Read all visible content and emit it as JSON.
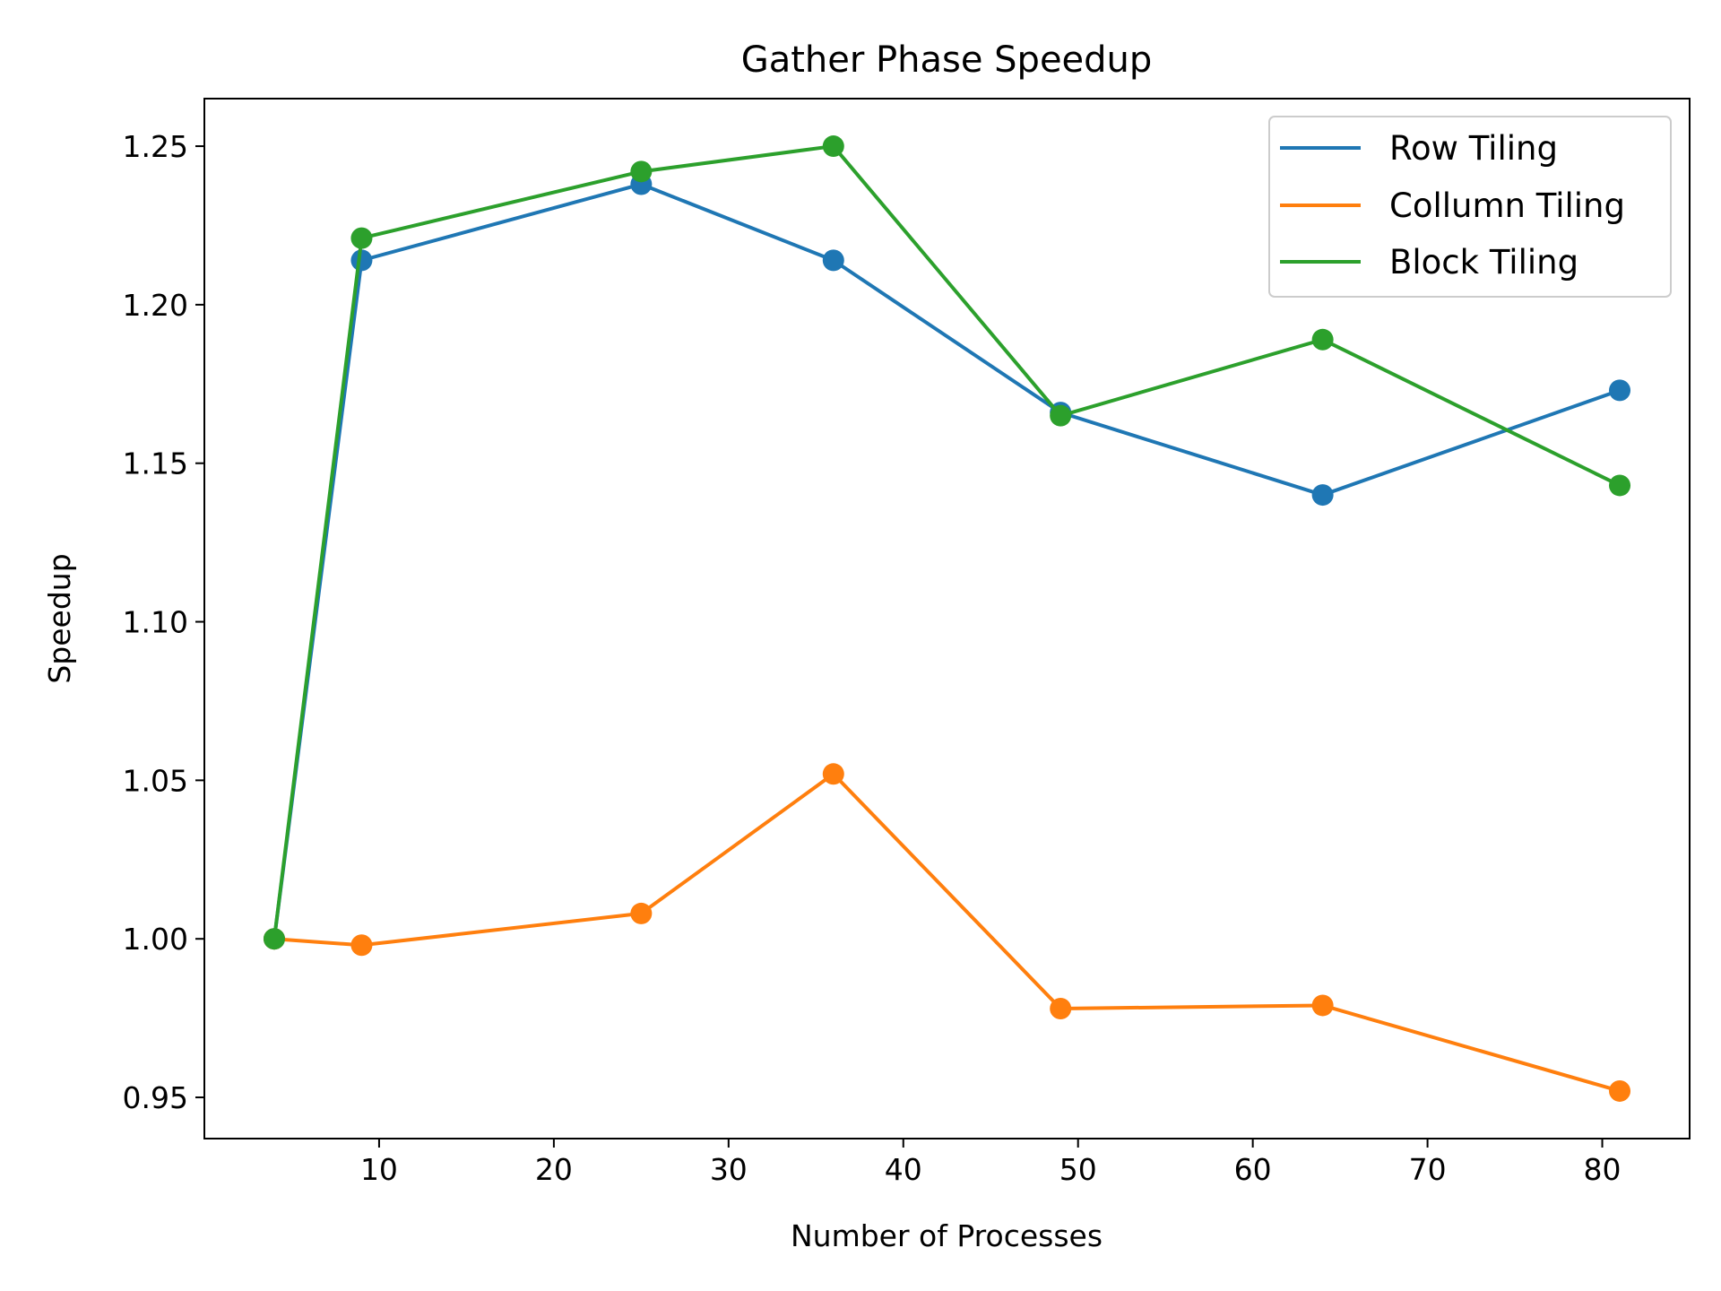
{
  "chart_data": {
    "type": "line",
    "title": "Gather Phase Speedup",
    "xlabel": "Number of Processes",
    "ylabel": "Speedup",
    "xlim": [
      0,
      85
    ],
    "ylim": [
      0.937,
      1.265
    ],
    "xticks": [
      10,
      20,
      30,
      40,
      50,
      60,
      70,
      80
    ],
    "yticks": [
      0.95,
      1.0,
      1.05,
      1.1,
      1.15,
      1.2,
      1.25
    ],
    "ytick_labels": [
      "0.95",
      "1.00",
      "1.05",
      "1.10",
      "1.15",
      "1.20",
      "1.25"
    ],
    "grid": false,
    "legend_position": "top-right",
    "x": [
      4,
      9,
      25,
      36,
      49,
      64,
      81
    ],
    "series": [
      {
        "name": "Row Tiling",
        "color": "#1f77b4",
        "values": [
          1.0,
          1.214,
          1.238,
          1.214,
          1.166,
          1.14,
          1.173
        ]
      },
      {
        "name": "Collumn Tiling",
        "color": "#ff7f0e",
        "values": [
          1.0,
          0.998,
          1.008,
          1.052,
          0.978,
          0.979,
          0.952
        ]
      },
      {
        "name": "Block Tiling",
        "color": "#2ca02c",
        "values": [
          1.0,
          1.221,
          1.242,
          1.25,
          1.165,
          1.189,
          1.143
        ]
      }
    ]
  }
}
